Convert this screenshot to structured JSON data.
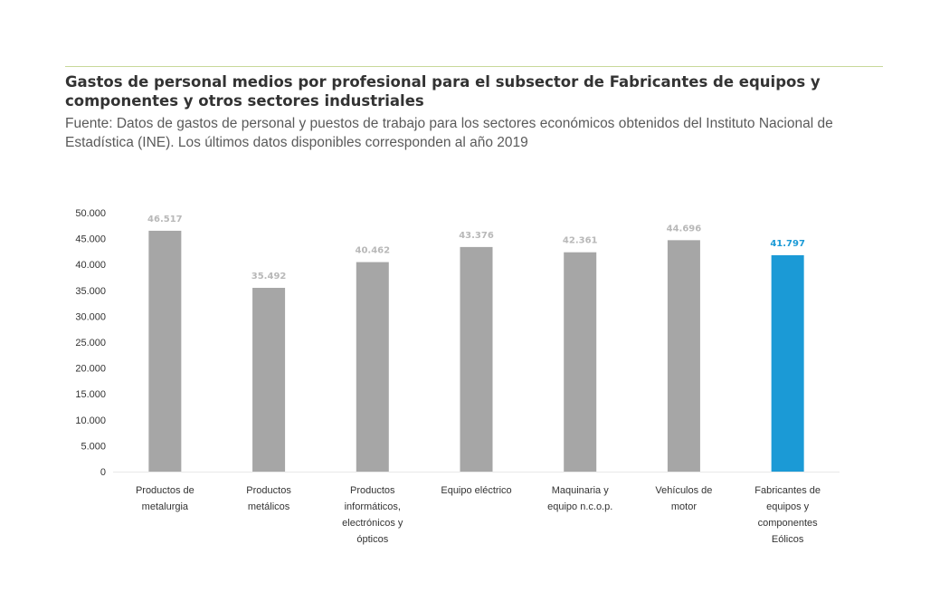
{
  "header": {
    "title": "Gastos de personal medios por profesional para el subsector de Fabricantes de equipos y componentes y otros sectores industriales",
    "subtitle": "Fuente: Datos de gastos de personal y puestos de trabajo para los sectores económicos obtenidos del Instituto Nacional de Estadística (INE). Los últimos datos disponibles corresponden al año 2019"
  },
  "colors": {
    "default_bar": "#a6a6a6",
    "highlight_bar": "#1b9ad6",
    "default_label": "#b8b8b8",
    "highlight_label": "#1b9ad6",
    "rule": "#c8d89a"
  },
  "chart_data": {
    "type": "bar",
    "title": "Gastos de personal medios por profesional para el subsector de Fabricantes de equipos y componentes y otros sectores industriales",
    "xlabel": "",
    "ylabel": "",
    "ylim": [
      0,
      50000
    ],
    "grid": false,
    "legend": "none",
    "y_ticks": [
      "0",
      "5.000",
      "10.000",
      "15.000",
      "20.000",
      "25.000",
      "30.000",
      "35.000",
      "40.000",
      "45.000",
      "50.000"
    ],
    "y_tick_values": [
      0,
      5000,
      10000,
      15000,
      20000,
      25000,
      30000,
      35000,
      40000,
      45000,
      50000
    ],
    "categories": [
      [
        "Productos de",
        "metalurgia"
      ],
      [
        "Productos",
        "metálicos"
      ],
      [
        "Productos",
        "informáticos,",
        "electrónicos y",
        "ópticos"
      ],
      [
        "Equipo eléctrico"
      ],
      [
        "Maquinaria y",
        "equipo n.c.o.p."
      ],
      [
        "Vehículos de",
        "motor"
      ],
      [
        "Fabricantes de",
        "equipos y",
        "componentes",
        "Eólicos"
      ]
    ],
    "values": [
      46517,
      35492,
      40462,
      43376,
      42361,
      44696,
      41797
    ],
    "value_labels": [
      "46.517",
      "35.492",
      "40.462",
      "43.376",
      "42.361",
      "44.696",
      "41.797"
    ],
    "highlight_index": 6
  }
}
